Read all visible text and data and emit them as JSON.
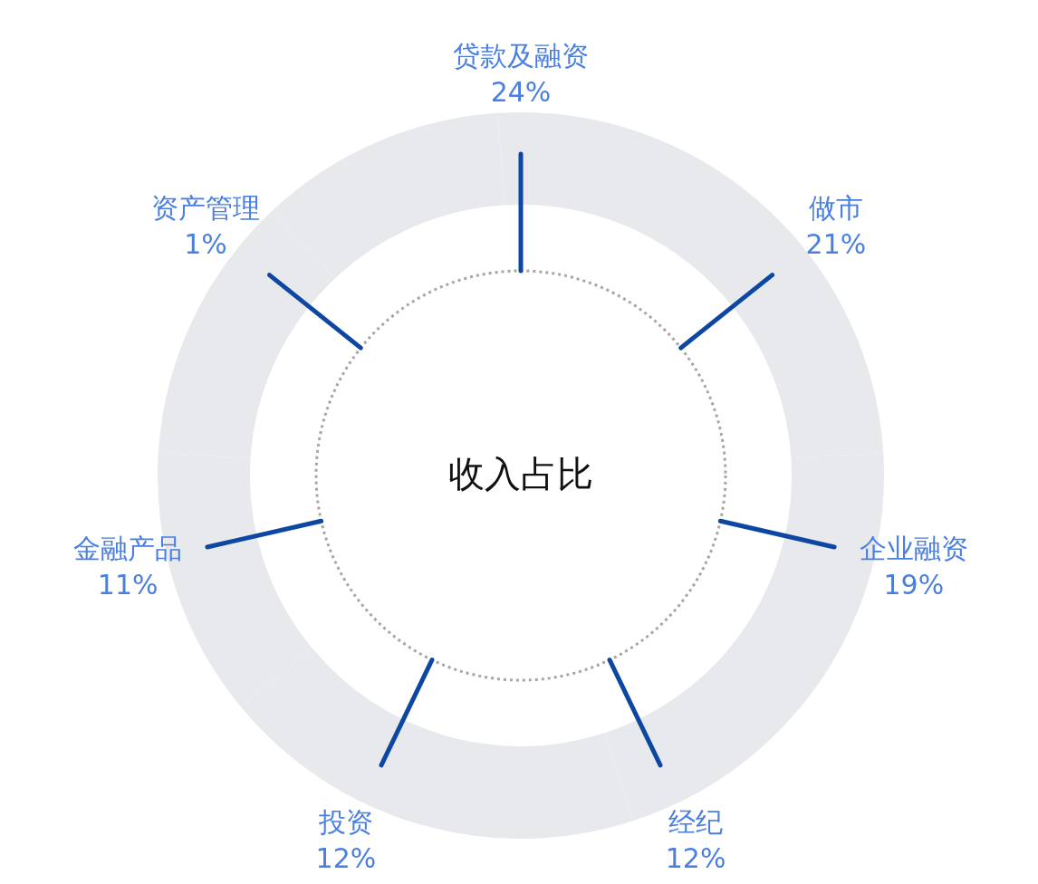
{
  "chart_data": {
    "type": "other",
    "title": "收入占比",
    "categories": [
      "贷款及融资",
      "做市",
      "企业融资",
      "经纪",
      "投资",
      "金融产品",
      "资产管理"
    ],
    "values": [
      24,
      21,
      19,
      12,
      12,
      11,
      1
    ],
    "value_labels": [
      "24%",
      "21%",
      "19%",
      "12%",
      "12%",
      "11%",
      "1%"
    ],
    "color": "#0d47a1"
  }
}
